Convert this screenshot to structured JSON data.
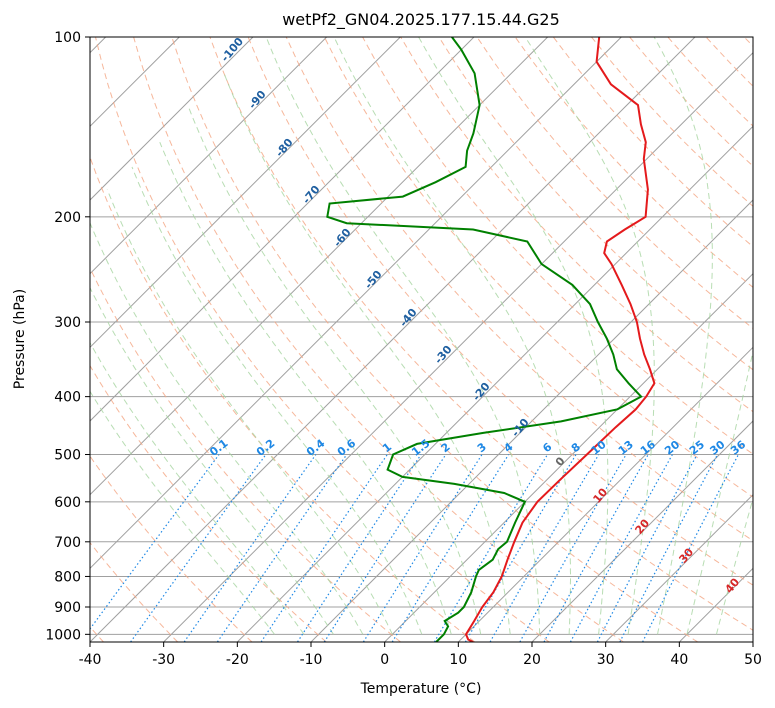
{
  "chart_data": {
    "type": "line",
    "title": "wetPf2_GN04.2025.177.15.44.G25",
    "xlabel": "Temperature (°C)",
    "ylabel": "Pressure (hPa)",
    "xlim": [
      -40,
      50
    ],
    "ylim": [
      1030,
      100
    ],
    "y_scale": "log",
    "grid": true,
    "x_ticks": [
      -40,
      -30,
      -20,
      -10,
      0,
      10,
      20,
      30,
      40,
      50
    ],
    "y_ticks": [
      100,
      200,
      300,
      400,
      500,
      600,
      700,
      800,
      900,
      1000
    ],
    "skew": 45,
    "series": [
      {
        "color": "#e41a1c",
        "points": [
          [
            1030,
            12
          ],
          [
            1020,
            11
          ],
          [
            1000,
            10
          ],
          [
            950,
            9.3
          ],
          [
            900,
            8.5
          ],
          [
            850,
            8
          ],
          [
            800,
            7
          ],
          [
            750,
            5.5
          ],
          [
            700,
            4
          ],
          [
            650,
            2.5
          ],
          [
            600,
            1.7
          ],
          [
            550,
            1.8
          ],
          [
            500,
            2
          ],
          [
            450,
            2.2
          ],
          [
            420,
            2.5
          ],
          [
            400,
            2.2
          ],
          [
            380,
            1.5
          ],
          [
            360,
            -1
          ],
          [
            340,
            -3.8
          ],
          [
            320,
            -6.5
          ],
          [
            300,
            -9.2
          ],
          [
            280,
            -12.5
          ],
          [
            260,
            -16.3
          ],
          [
            240,
            -20.5
          ],
          [
            230,
            -23
          ],
          [
            220,
            -24.2
          ],
          [
            210,
            -23.4
          ],
          [
            200,
            -22.3
          ],
          [
            180,
            -25.7
          ],
          [
            160,
            -30.4
          ],
          [
            150,
            -32.4
          ],
          [
            140,
            -35.5
          ],
          [
            130,
            -38.5
          ],
          [
            120,
            -45
          ],
          [
            110,
            -50
          ],
          [
            100,
            -53
          ]
        ]
      },
      {
        "color": "#008000",
        "points": [
          [
            1030,
            7
          ],
          [
            1000,
            7
          ],
          [
            970,
            6.5
          ],
          [
            950,
            5.3
          ],
          [
            920,
            6
          ],
          [
            900,
            6
          ],
          [
            850,
            5
          ],
          [
            800,
            3.5
          ],
          [
            780,
            3
          ],
          [
            750,
            3.5
          ],
          [
            720,
            2.8
          ],
          [
            700,
            3
          ],
          [
            650,
            1.5
          ],
          [
            600,
            0
          ],
          [
            580,
            -4
          ],
          [
            560,
            -12
          ],
          [
            545,
            -20
          ],
          [
            530,
            -23
          ],
          [
            500,
            -24.3
          ],
          [
            480,
            -22.5
          ],
          [
            460,
            -15
          ],
          [
            440,
            -6
          ],
          [
            420,
            0
          ],
          [
            400,
            1.5
          ],
          [
            380,
            -2
          ],
          [
            360,
            -5.5
          ],
          [
            340,
            -8
          ],
          [
            320,
            -11
          ],
          [
            300,
            -14.5
          ],
          [
            280,
            -18
          ],
          [
            260,
            -23
          ],
          [
            240,
            -30
          ],
          [
            220,
            -35
          ],
          [
            210,
            -44
          ],
          [
            205,
            -62
          ],
          [
            200,
            -65.5
          ],
          [
            190,
            -67
          ],
          [
            185,
            -58
          ],
          [
            175,
            -55.5
          ],
          [
            165,
            -53.5
          ],
          [
            155,
            -55.5
          ],
          [
            145,
            -57
          ],
          [
            130,
            -60
          ],
          [
            115,
            -65
          ],
          [
            105,
            -70
          ],
          [
            100,
            -73
          ]
        ]
      }
    ],
    "mixing_ratio_lines": [
      0.1,
      0.2,
      0.4,
      0.6,
      1,
      1.5,
      2,
      3,
      4,
      6,
      8,
      10,
      13,
      16,
      20,
      25,
      30,
      36
    ],
    "dry_adiabat_labels": [
      -100,
      -90,
      -80,
      -70,
      -60,
      -50,
      -40,
      -30,
      -20,
      -10
    ],
    "moist_adiabat_labels": [
      0,
      10,
      20,
      30,
      40
    ],
    "colors": {
      "temperature": "#e41a1c",
      "dewpoint": "#008000",
      "dry_adiabat": "#f4a582",
      "moist_adiabat": "#a6d5a0",
      "mixing_ratio": "#1e88e5",
      "isotherm": "#a0a0a0"
    }
  }
}
